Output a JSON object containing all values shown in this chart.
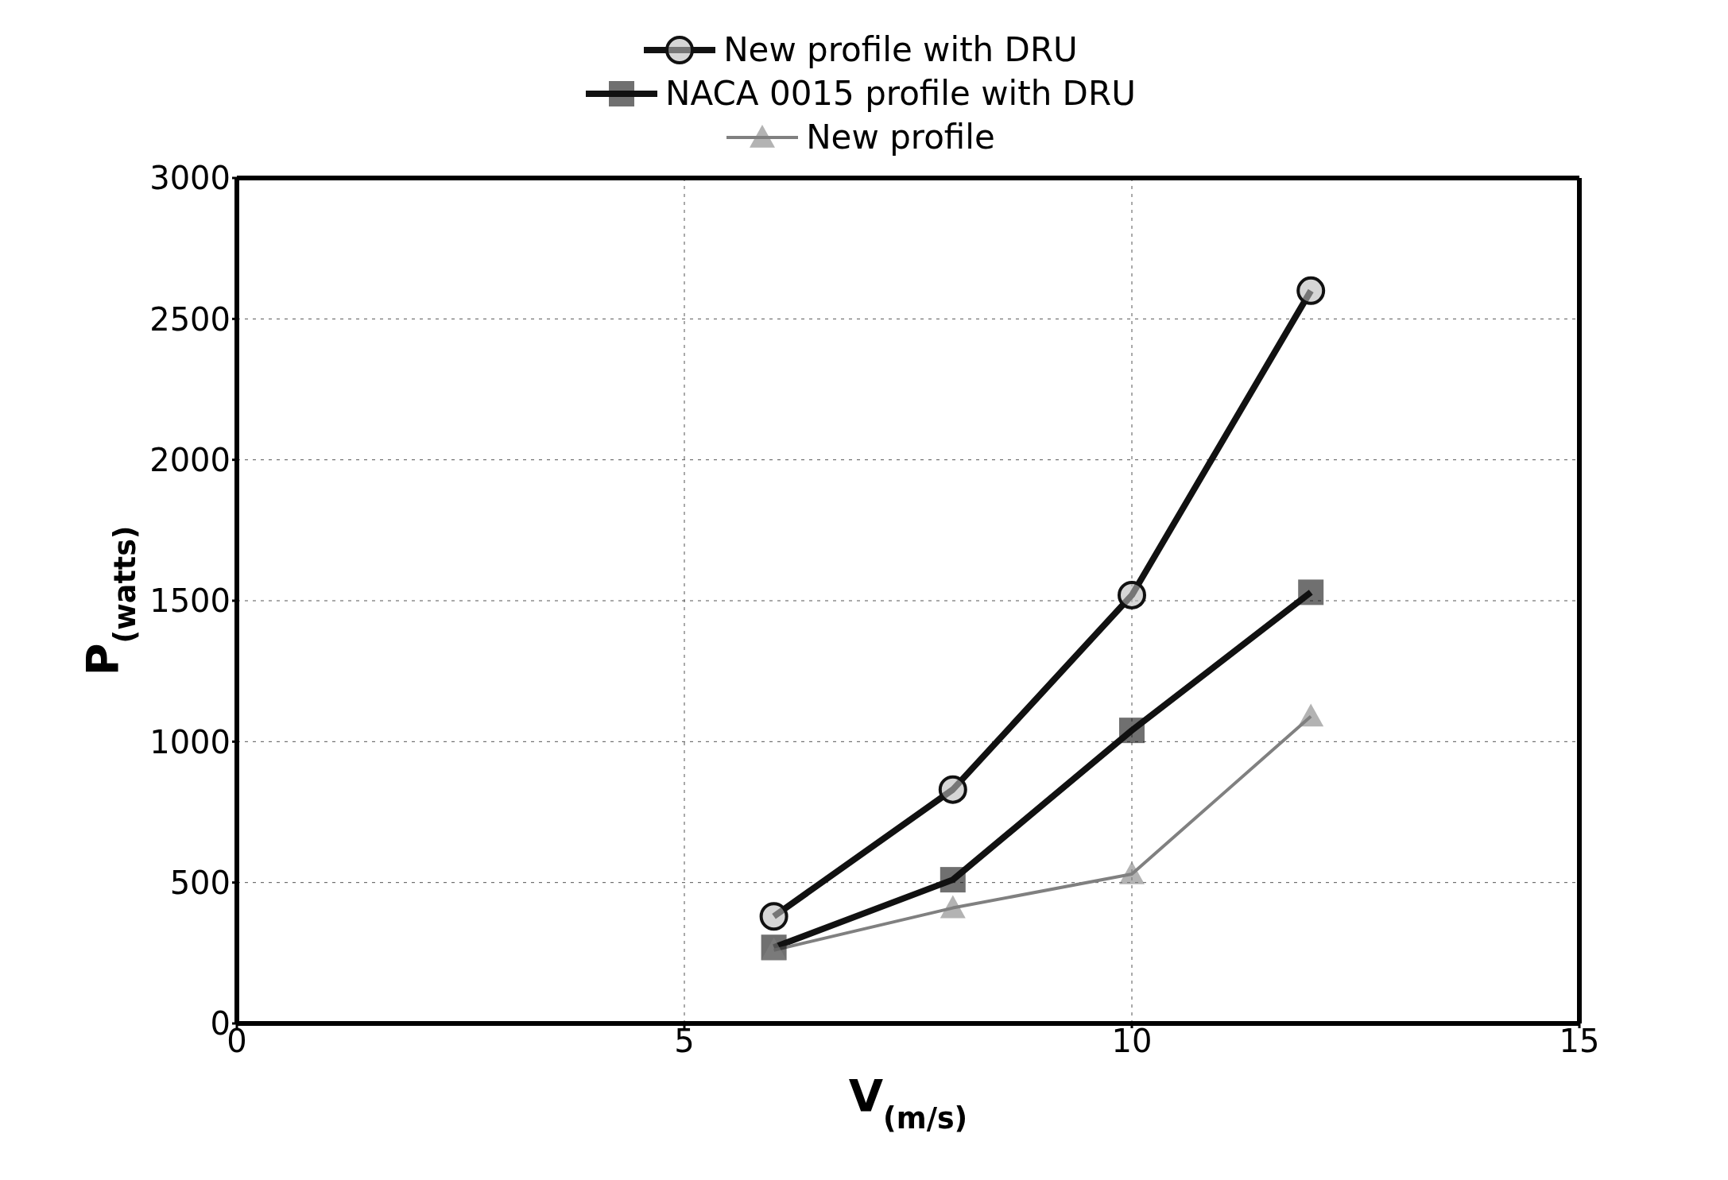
{
  "chart_data": {
    "type": "line",
    "xlabel": "V$_{(m/s)}$",
    "ylabel": "P$_{(watts)}$",
    "xlim": [
      0,
      15
    ],
    "xticks": [
      0,
      5,
      10,
      15
    ],
    "ylim": [
      0,
      3000
    ],
    "yticks": [
      0,
      500,
      1000,
      1500,
      2000,
      2500,
      3000
    ],
    "grid": true,
    "legend": "top",
    "line_style": "solid",
    "series": [
      {
        "name": "New profile with DRU",
        "color": "#111111",
        "marker": "circle",
        "x": [
          6,
          8,
          10,
          12
        ],
        "values": [
          380,
          830,
          1520,
          2600
        ]
      },
      {
        "name": "NACA 0015 profile with DRU",
        "color": "#111111",
        "marker": "square",
        "x": [
          6,
          8,
          10,
          12
        ],
        "values": [
          270,
          510,
          1040,
          1530
        ]
      },
      {
        "name": "New profile",
        "color": "#808080",
        "marker": "triangle",
        "x": [
          6,
          8,
          10,
          12
        ],
        "values": [
          260,
          410,
          530,
          1090
        ]
      }
    ]
  }
}
